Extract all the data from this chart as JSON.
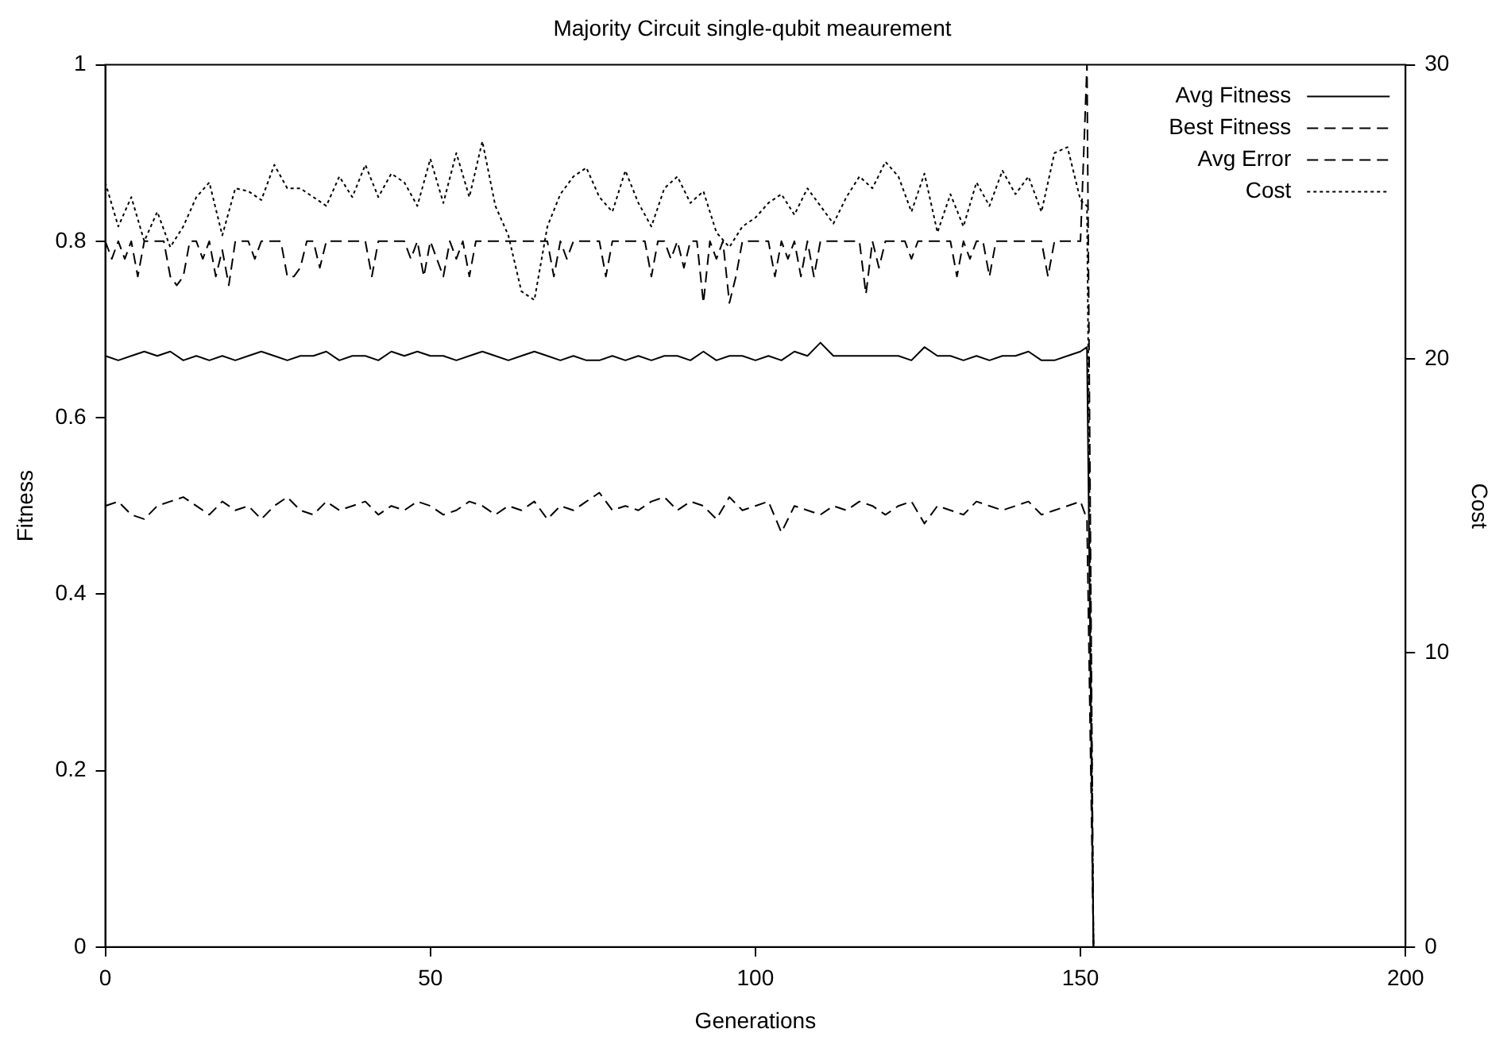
{
  "chart_data": {
    "type": "line",
    "title": "Majority Circuit single-qubit meaurement",
    "xlabel": "Generations",
    "ylabel": "Fitness",
    "y2label": "Cost",
    "x": [
      0,
      2,
      4,
      6,
      8,
      10,
      12,
      14,
      16,
      18,
      20,
      22,
      24,
      26,
      28,
      30,
      32,
      34,
      36,
      38,
      40,
      42,
      44,
      46,
      48,
      50,
      52,
      54,
      56,
      58,
      60,
      62,
      64,
      66,
      68,
      70,
      72,
      74,
      76,
      78,
      80,
      82,
      84,
      86,
      88,
      90,
      92,
      94,
      96,
      98,
      100,
      102,
      104,
      106,
      108,
      110,
      112,
      114,
      116,
      118,
      120,
      122,
      124,
      126,
      128,
      130,
      132,
      134,
      136,
      138,
      140,
      142,
      144,
      146,
      148,
      150,
      151,
      152
    ],
    "xlim": [
      0,
      200
    ],
    "xticks": [
      0,
      50,
      100,
      150,
      200
    ],
    "ylim": [
      0,
      1
    ],
    "yticks": [
      0,
      0.2,
      0.4,
      0.6,
      0.8,
      1
    ],
    "y2lim": [
      0,
      30
    ],
    "y2ticks": [
      0,
      10,
      20,
      30
    ],
    "grid": false,
    "legend": "top right",
    "marker": "none",
    "series": [
      {
        "name": "Avg Fitness",
        "color": "#000000",
        "line_style": "solid",
        "values": [
          0.67,
          0.665,
          0.67,
          0.675,
          0.67,
          0.675,
          0.665,
          0.67,
          0.665,
          0.67,
          0.665,
          0.67,
          0.675,
          0.67,
          0.665,
          0.67,
          0.67,
          0.675,
          0.665,
          0.67,
          0.67,
          0.665,
          0.675,
          0.67,
          0.675,
          0.67,
          0.67,
          0.665,
          0.67,
          0.675,
          0.67,
          0.665,
          0.67,
          0.675,
          0.67,
          0.665,
          0.67,
          0.665,
          0.665,
          0.67,
          0.665,
          0.67,
          0.665,
          0.67,
          0.67,
          0.665,
          0.675,
          0.665,
          0.67,
          0.67,
          0.665,
          0.67,
          0.665,
          0.675,
          0.67,
          0.685,
          0.67,
          0.67,
          0.67,
          0.67,
          0.67,
          0.67,
          0.665,
          0.68,
          0.67,
          0.67,
          0.665,
          0.67,
          0.665,
          0.67,
          0.67,
          0.675,
          0.665,
          0.665,
          0.67,
          0.675,
          0.68,
          0
        ]
      },
      {
        "name": "Best Fitness",
        "color": "#000000",
        "line_style": "dashed",
        "x": [
          0,
          1,
          2,
          3,
          4,
          5,
          6,
          7,
          8,
          9,
          10,
          11,
          12,
          13,
          14,
          15,
          16,
          17,
          18,
          19,
          20,
          21,
          22,
          23,
          24,
          25,
          26,
          27,
          28,
          29,
          30,
          31,
          32,
          33,
          34,
          35,
          36,
          37,
          38,
          39,
          40,
          41,
          42,
          43,
          44,
          45,
          46,
          47,
          48,
          49,
          50,
          51,
          52,
          53,
          54,
          55,
          56,
          57,
          58,
          59,
          60,
          61,
          62,
          63,
          64,
          65,
          66,
          67,
          68,
          69,
          70,
          71,
          72,
          73,
          74,
          75,
          76,
          77,
          78,
          79,
          80,
          81,
          82,
          83,
          84,
          85,
          86,
          87,
          88,
          89,
          90,
          91,
          92,
          93,
          94,
          95,
          96,
          97,
          98,
          99,
          100,
          101,
          102,
          103,
          104,
          105,
          106,
          107,
          108,
          109,
          110,
          111,
          112,
          113,
          114,
          115,
          116,
          117,
          118,
          119,
          120,
          121,
          122,
          123,
          124,
          125,
          126,
          127,
          128,
          129,
          130,
          131,
          132,
          133,
          134,
          135,
          136,
          137,
          138,
          139,
          140,
          141,
          142,
          143,
          144,
          145,
          146,
          147,
          148,
          149,
          150,
          151,
          152
        ],
        "values": [
          0.8,
          0.78,
          0.8,
          0.78,
          0.8,
          0.76,
          0.8,
          0.8,
          0.8,
          0.8,
          0.76,
          0.75,
          0.76,
          0.8,
          0.8,
          0.78,
          0.8,
          0.76,
          0.79,
          0.75,
          0.8,
          0.8,
          0.8,
          0.78,
          0.8,
          0.8,
          0.8,
          0.8,
          0.76,
          0.76,
          0.77,
          0.8,
          0.8,
          0.77,
          0.8,
          0.8,
          0.8,
          0.8,
          0.8,
          0.8,
          0.8,
          0.76,
          0.8,
          0.8,
          0.8,
          0.8,
          0.8,
          0.78,
          0.8,
          0.76,
          0.8,
          0.78,
          0.76,
          0.8,
          0.78,
          0.8,
          0.76,
          0.8,
          0.8,
          0.8,
          0.8,
          0.8,
          0.8,
          0.8,
          0.8,
          0.8,
          0.8,
          0.8,
          0.8,
          0.76,
          0.8,
          0.78,
          0.8,
          0.8,
          0.8,
          0.8,
          0.8,
          0.76,
          0.8,
          0.8,
          0.8,
          0.8,
          0.8,
          0.8,
          0.76,
          0.8,
          0.8,
          0.78,
          0.8,
          0.77,
          0.8,
          0.8,
          0.73,
          0.8,
          0.78,
          0.8,
          0.73,
          0.76,
          0.8,
          0.8,
          0.8,
          0.8,
          0.8,
          0.76,
          0.8,
          0.78,
          0.8,
          0.76,
          0.8,
          0.76,
          0.8,
          0.8,
          0.8,
          0.8,
          0.8,
          0.8,
          0.8,
          0.74,
          0.8,
          0.77,
          0.8,
          0.8,
          0.8,
          0.8,
          0.78,
          0.8,
          0.8,
          0.8,
          0.8,
          0.8,
          0.8,
          0.76,
          0.8,
          0.78,
          0.8,
          0.8,
          0.76,
          0.8,
          0.8,
          0.8,
          0.8,
          0.8,
          0.8,
          0.8,
          0.8,
          0.76,
          0.8,
          0.8,
          0.8,
          0.8,
          0.8,
          1,
          0
        ]
      },
      {
        "name": "Avg Error",
        "color": "#000000",
        "line_style": "dashed",
        "values": [
          0.5,
          0.505,
          0.49,
          0.485,
          0.5,
          0.505,
          0.51,
          0.5,
          0.49,
          0.505,
          0.495,
          0.5,
          0.485,
          0.5,
          0.51,
          0.495,
          0.49,
          0.505,
          0.495,
          0.5,
          0.505,
          0.49,
          0.5,
          0.495,
          0.505,
          0.5,
          0.49,
          0.495,
          0.505,
          0.5,
          0.49,
          0.5,
          0.495,
          0.505,
          0.485,
          0.5,
          0.495,
          0.505,
          0.515,
          0.495,
          0.5,
          0.495,
          0.505,
          0.51,
          0.495,
          0.505,
          0.5,
          0.485,
          0.51,
          0.495,
          0.5,
          0.505,
          0.47,
          0.5,
          0.495,
          0.49,
          0.5,
          0.495,
          0.505,
          0.5,
          0.49,
          0.5,
          0.505,
          0.48,
          0.5,
          0.495,
          0.49,
          0.505,
          0.5,
          0.495,
          0.5,
          0.505,
          0.49,
          0.495,
          0.5,
          0.505,
          0.485,
          0
        ]
      },
      {
        "name": "Cost",
        "color": "#000000",
        "line_style": "dotted",
        "axis": "y2",
        "values": [
          26,
          24.5,
          25.5,
          24,
          25,
          23.8,
          24.5,
          25.5,
          26,
          24.2,
          25.8,
          25.7,
          25.4,
          26.6,
          25.8,
          25.8,
          25.5,
          25.2,
          26.2,
          25.5,
          26.6,
          25.5,
          26.3,
          26,
          25.2,
          26.8,
          25.3,
          27,
          25.5,
          27.4,
          25.2,
          24.2,
          22.3,
          22,
          24.5,
          25.6,
          26.2,
          26.5,
          25.5,
          25,
          26.4,
          25.3,
          24.5,
          25.8,
          26.2,
          25.3,
          25.7,
          24.3,
          23.8,
          24.5,
          24.8,
          25.3,
          25.6,
          24.9,
          25.8,
          25.2,
          24.6,
          25.5,
          26.2,
          25.8,
          26.7,
          26.2,
          25,
          26.3,
          24.3,
          25.6,
          24.5,
          26,
          25.2,
          26.4,
          25.6,
          26.2,
          25,
          27,
          27.2,
          25.4,
          25.2,
          0
        ]
      }
    ]
  }
}
